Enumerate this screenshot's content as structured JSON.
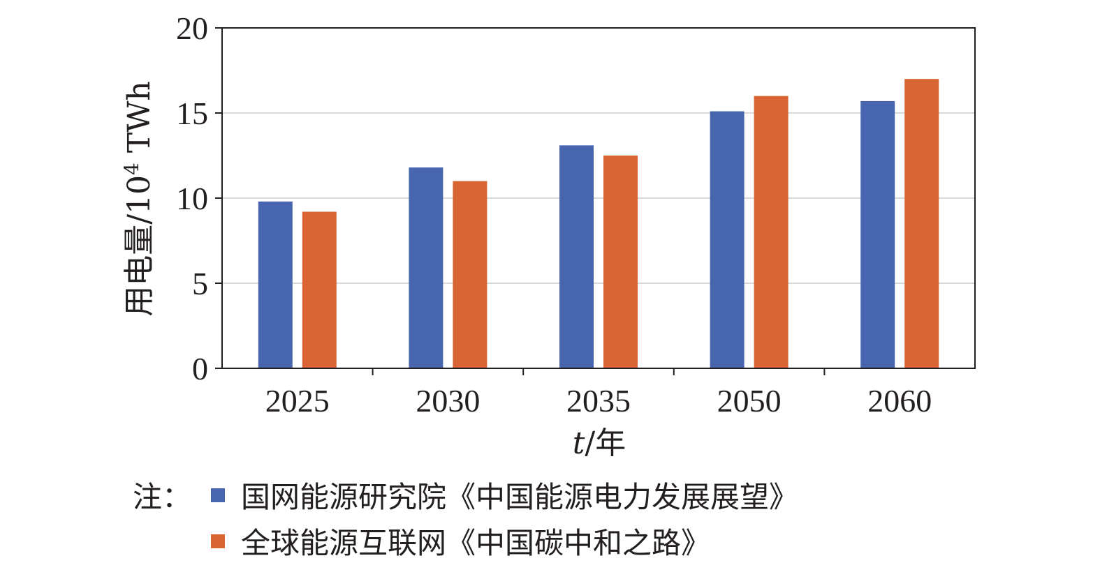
{
  "chart_data": {
    "type": "bar",
    "categories": [
      "2025",
      "2030",
      "2035",
      "2050",
      "2060"
    ],
    "series": [
      {
        "name": "国网能源研究院《中国能源电力发展展望》",
        "color": "#4866B0",
        "values": [
          9.8,
          11.8,
          13.1,
          15.1,
          15.7
        ]
      },
      {
        "name": "全球能源互联网《中国碳中和之路》",
        "color": "#D96534",
        "values": [
          9.2,
          11.0,
          12.5,
          16.0,
          17.0
        ]
      }
    ],
    "ylim": [
      0,
      20
    ],
    "yticks": [
      0,
      5,
      10,
      15,
      20
    ],
    "grid": true,
    "xlabel": {
      "italic_part": "t",
      "rest": "/年"
    },
    "ylabel": {
      "main": "用电量/10",
      "superscript": "4",
      "unit": " TWh"
    },
    "legend_note": "注："
  }
}
